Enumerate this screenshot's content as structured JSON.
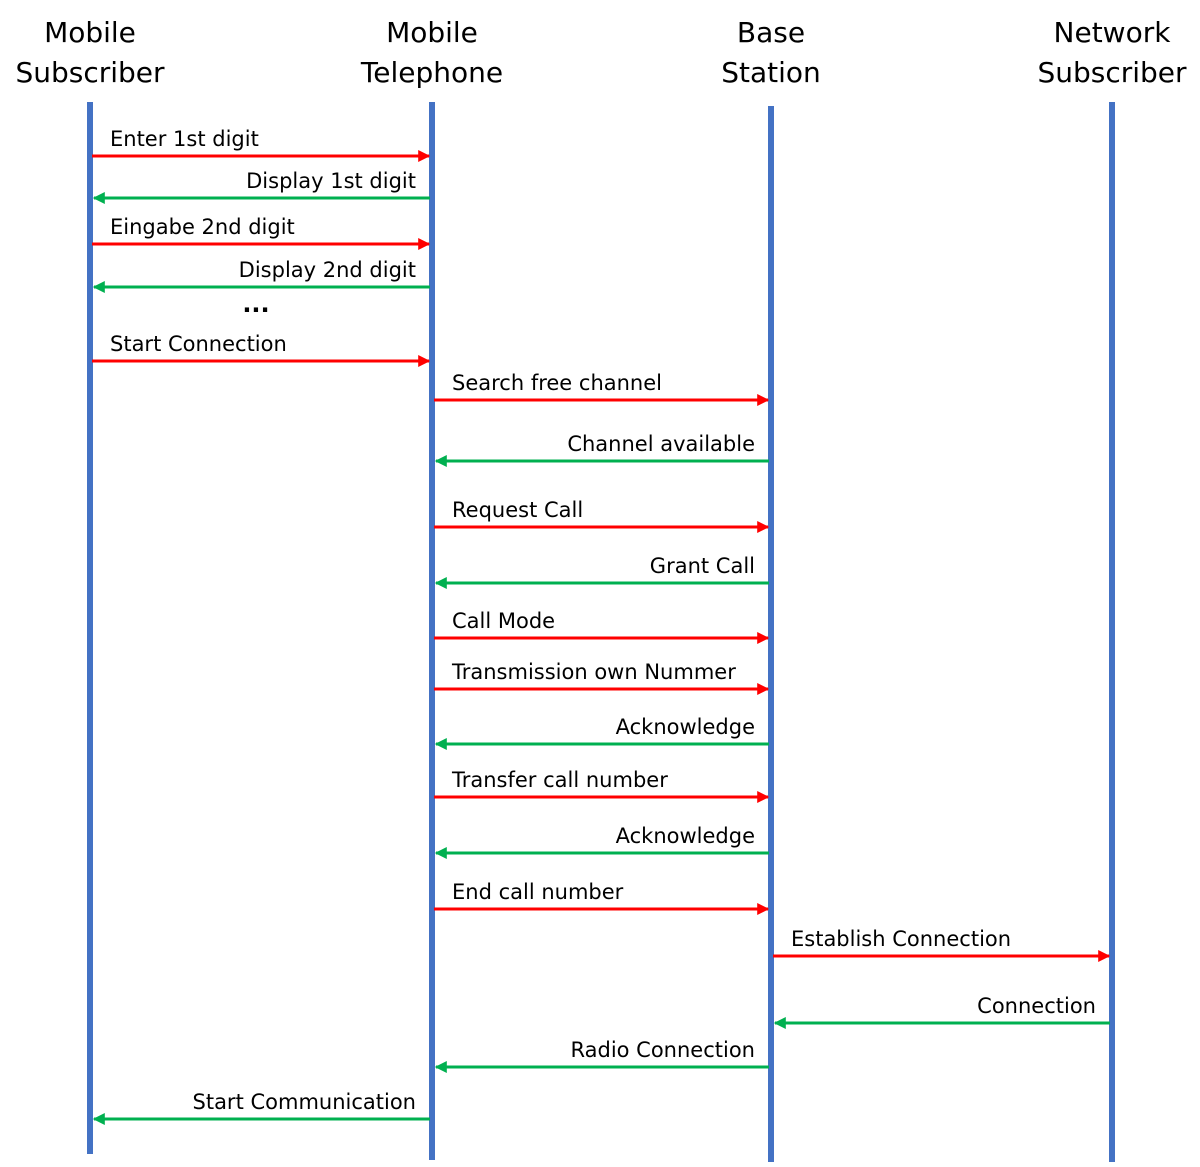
{
  "participants": [
    {
      "label": [
        "Mobile",
        "Subscriber"
      ]
    },
    {
      "label": [
        "Mobile",
        "Telephone"
      ]
    },
    {
      "label": [
        "Base",
        "Station"
      ]
    },
    {
      "label": [
        "Network",
        "Subscriber"
      ]
    }
  ],
  "messages": [
    {
      "label": "Enter 1st digit",
      "from": 0,
      "to": 1,
      "color": "#ff0000"
    },
    {
      "label": "Display 1st digit",
      "from": 1,
      "to": 0,
      "color": "#00b050"
    },
    {
      "label": "Eingabe 2nd digit",
      "from": 0,
      "to": 1,
      "color": "#ff0000"
    },
    {
      "label": "Display 2nd digit",
      "from": 1,
      "to": 0,
      "color": "#00b050"
    },
    {
      "label": "Start Connection",
      "from": 0,
      "to": 1,
      "color": "#ff0000"
    },
    {
      "label": "Search free channel",
      "from": 1,
      "to": 2,
      "color": "#ff0000"
    },
    {
      "label": "Channel available",
      "from": 2,
      "to": 1,
      "color": "#00b050"
    },
    {
      "label": "Request Call",
      "from": 1,
      "to": 2,
      "color": "#ff0000"
    },
    {
      "label": "Grant Call",
      "from": 2,
      "to": 1,
      "color": "#00b050"
    },
    {
      "label": "Call Mode",
      "from": 1,
      "to": 2,
      "color": "#ff0000"
    },
    {
      "label": "Transmission own Nummer",
      "from": 1,
      "to": 2,
      "color": "#ff0000"
    },
    {
      "label": "Acknowledge",
      "from": 2,
      "to": 1,
      "color": "#00b050"
    },
    {
      "label": "Transfer call number",
      "from": 1,
      "to": 2,
      "color": "#ff0000"
    },
    {
      "label": "Acknowledge",
      "from": 2,
      "to": 1,
      "color": "#00b050"
    },
    {
      "label": "End call number",
      "from": 1,
      "to": 2,
      "color": "#ff0000"
    },
    {
      "label": "Establish Connection",
      "from": 2,
      "to": 3,
      "color": "#ff0000"
    },
    {
      "label": "Connection",
      "from": 3,
      "to": 2,
      "color": "#00b050"
    },
    {
      "label": "Radio Connection",
      "from": 2,
      "to": 1,
      "color": "#00b050"
    },
    {
      "label": "Start Communication",
      "from": 1,
      "to": 0,
      "color": "#00b050"
    }
  ],
  "ellipsis": "..."
}
